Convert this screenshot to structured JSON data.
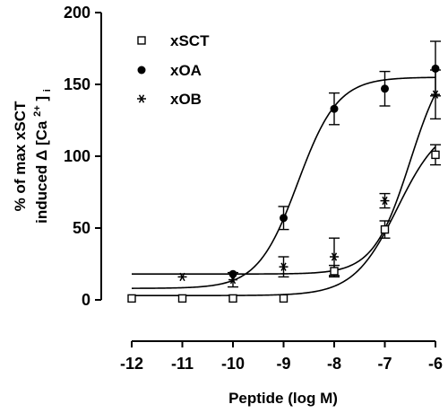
{
  "chart_data": {
    "type": "scatter",
    "xlabel": "Peptide (log M)",
    "ylabel_line1": "% of max xSCT",
    "ylabel_line2_prefix": "induced Δ",
    "ylabel_line2_ca": "[Ca",
    "ylabel_line2_sup": "2+",
    "ylabel_line2_close": "]",
    "ylabel_line2_sub": "i",
    "xlim": [
      -12,
      -6
    ],
    "ylim": [
      0,
      200
    ],
    "x_ticks": [
      -12,
      -11,
      -10,
      -9,
      -8,
      -7,
      -6
    ],
    "x_tick_labels": [
      "-12",
      "-11",
      "-10",
      "-9",
      "-8",
      "-7",
      "-6"
    ],
    "y_ticks": [
      0,
      50,
      100,
      150,
      200
    ],
    "y_tick_labels": [
      "0",
      "50",
      "100",
      "150",
      "200"
    ],
    "legend_position": "top-left",
    "series": [
      {
        "name": "xSCT",
        "marker": "open-square",
        "points": [
          {
            "x": -12,
            "y": 1,
            "err": 0
          },
          {
            "x": -11,
            "y": 1,
            "err": 0
          },
          {
            "x": -10,
            "y": 1,
            "err": 0
          },
          {
            "x": -9,
            "y": 1,
            "err": 0
          },
          {
            "x": -8,
            "y": 20,
            "err": 4
          },
          {
            "x": -7,
            "y": 49,
            "err": 6
          },
          {
            "x": -6,
            "y": 101,
            "err": 7
          }
        ],
        "fit": {
          "bottom": 3,
          "top": 125,
          "logEC50": -6.75,
          "hill": 1.0
        }
      },
      {
        "name": "xOA",
        "marker": "filled-circle",
        "points": [
          {
            "x": -10,
            "y": 18,
            "err": 0
          },
          {
            "x": -9,
            "y": 57,
            "err": 8
          },
          {
            "x": -8,
            "y": 133,
            "err": 11
          },
          {
            "x": -7,
            "y": 147,
            "err": 12
          },
          {
            "x": -6,
            "y": 161,
            "err": 19
          }
        ],
        "fit": {
          "bottom": 8,
          "top": 155,
          "logEC50": -8.72,
          "hill": 1.1
        }
      },
      {
        "name": "xOB",
        "marker": "asterisk",
        "points": [
          {
            "x": -11,
            "y": 16,
            "err": 0
          },
          {
            "x": -10,
            "y": 14,
            "err": 5
          },
          {
            "x": -9,
            "y": 23,
            "err": 7
          },
          {
            "x": -8,
            "y": 30,
            "err": 13
          },
          {
            "x": -7,
            "y": 69,
            "err": 5
          },
          {
            "x": -6,
            "y": 143,
            "err": 17
          }
        ],
        "fit": {
          "bottom": 18,
          "top": 175,
          "logEC50": -6.5,
          "hill": 1.2
        }
      }
    ]
  }
}
